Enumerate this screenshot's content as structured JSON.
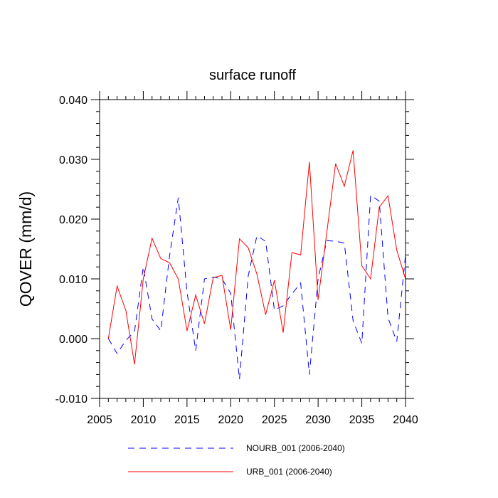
{
  "chart_data": {
    "type": "line",
    "title": "surface runoff",
    "xlabel": "",
    "ylabel": "QOVER  (mm/d)",
    "xlim": [
      2005,
      2040
    ],
    "ylim": [
      -0.01,
      0.04
    ],
    "x_ticks": [
      2005,
      2010,
      2015,
      2020,
      2025,
      2030,
      2035,
      2040
    ],
    "x_tick_labels": [
      "2005",
      "2010",
      "2015",
      "2020",
      "2025",
      "2030",
      "2035",
      "2040"
    ],
    "y_ticks": [
      -0.01,
      0.0,
      0.01,
      0.02,
      0.03,
      0.04
    ],
    "y_tick_labels": [
      "-0.010",
      "0.000",
      "0.010",
      "0.020",
      "0.030",
      "0.040"
    ],
    "grid": false,
    "legend_position": "bottom",
    "x": [
      2006,
      2007,
      2008,
      2009,
      2010,
      2011,
      2012,
      2013,
      2014,
      2015,
      2016,
      2017,
      2018,
      2019,
      2020,
      2021,
      2022,
      2023,
      2024,
      2025,
      2026,
      2027,
      2028,
      2029,
      2030,
      2031,
      2032,
      2033,
      2034,
      2035,
      2036,
      2037,
      2038,
      2039,
      2040
    ],
    "series": [
      {
        "name": "NOURB_001 (2006-2040)",
        "color": "#0000ff",
        "dash": "dashed",
        "values": [
          0.0,
          -0.0025,
          -0.0003,
          0.0012,
          0.012,
          0.0033,
          0.0013,
          0.0138,
          0.0236,
          0.0078,
          -0.002,
          0.01,
          0.0103,
          0.01,
          0.0076,
          -0.0068,
          0.0105,
          0.0172,
          0.0163,
          0.0048,
          0.0055,
          0.0075,
          0.0093,
          -0.006,
          0.01,
          0.0164,
          0.0163,
          0.016,
          0.003,
          -0.0008,
          0.024,
          0.023,
          0.0035,
          -0.0005,
          0.014
        ]
      },
      {
        "name": "URB_001 (2006-2040)",
        "color": "#ff0000",
        "dash": "solid",
        "values": [
          0.0,
          0.0088,
          0.0047,
          -0.0043,
          0.01,
          0.0168,
          0.0134,
          0.0127,
          0.01,
          0.0013,
          0.0073,
          0.0025,
          0.0102,
          0.0106,
          0.0015,
          0.0167,
          0.0152,
          0.0108,
          0.004,
          0.0098,
          0.001,
          0.0144,
          0.014,
          0.0296,
          0.0065,
          0.0178,
          0.0293,
          0.0255,
          0.0315,
          0.0122,
          0.01,
          0.022,
          0.0239,
          0.0148,
          0.01
        ]
      }
    ]
  }
}
